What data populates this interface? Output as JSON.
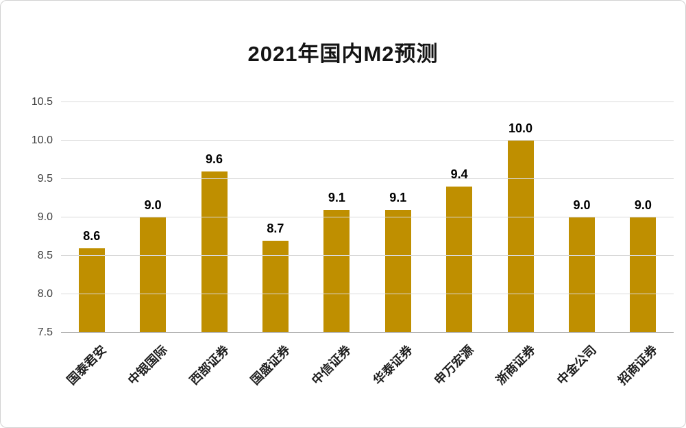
{
  "chart_data": {
    "type": "bar",
    "title": "2021年国内M2预测",
    "categories": [
      "国泰君安",
      "中银国际",
      "西部证券",
      "国盛证券",
      "中信证券",
      "华泰证券",
      "申万宏源",
      "浙商证券",
      "中金公司",
      "招商证券"
    ],
    "values": [
      8.6,
      9.0,
      9.6,
      8.7,
      9.1,
      9.1,
      9.4,
      10.0,
      9.0,
      9.0
    ],
    "value_labels": [
      "8.6",
      "9.0",
      "9.6",
      "8.7",
      "9.1",
      "9.1",
      "9.4",
      "10.0",
      "9.0",
      "9.0"
    ],
    "xlabel": "",
    "ylabel": "",
    "ylim": [
      7.5,
      10.5
    ],
    "ytick_step": 0.5,
    "ytick_labels": [
      "7.5",
      "8.0",
      "8.5",
      "9.0",
      "9.5",
      "10.0",
      "10.5"
    ],
    "grid": true,
    "legend_position": "none",
    "colors": {
      "bar": "#BF8F00",
      "gridline": "#D9D9D9",
      "axis_line": "#9B9B9B",
      "tick_text": "#3F3F3F",
      "label_text": "#000000",
      "title_text": "#141414"
    }
  }
}
